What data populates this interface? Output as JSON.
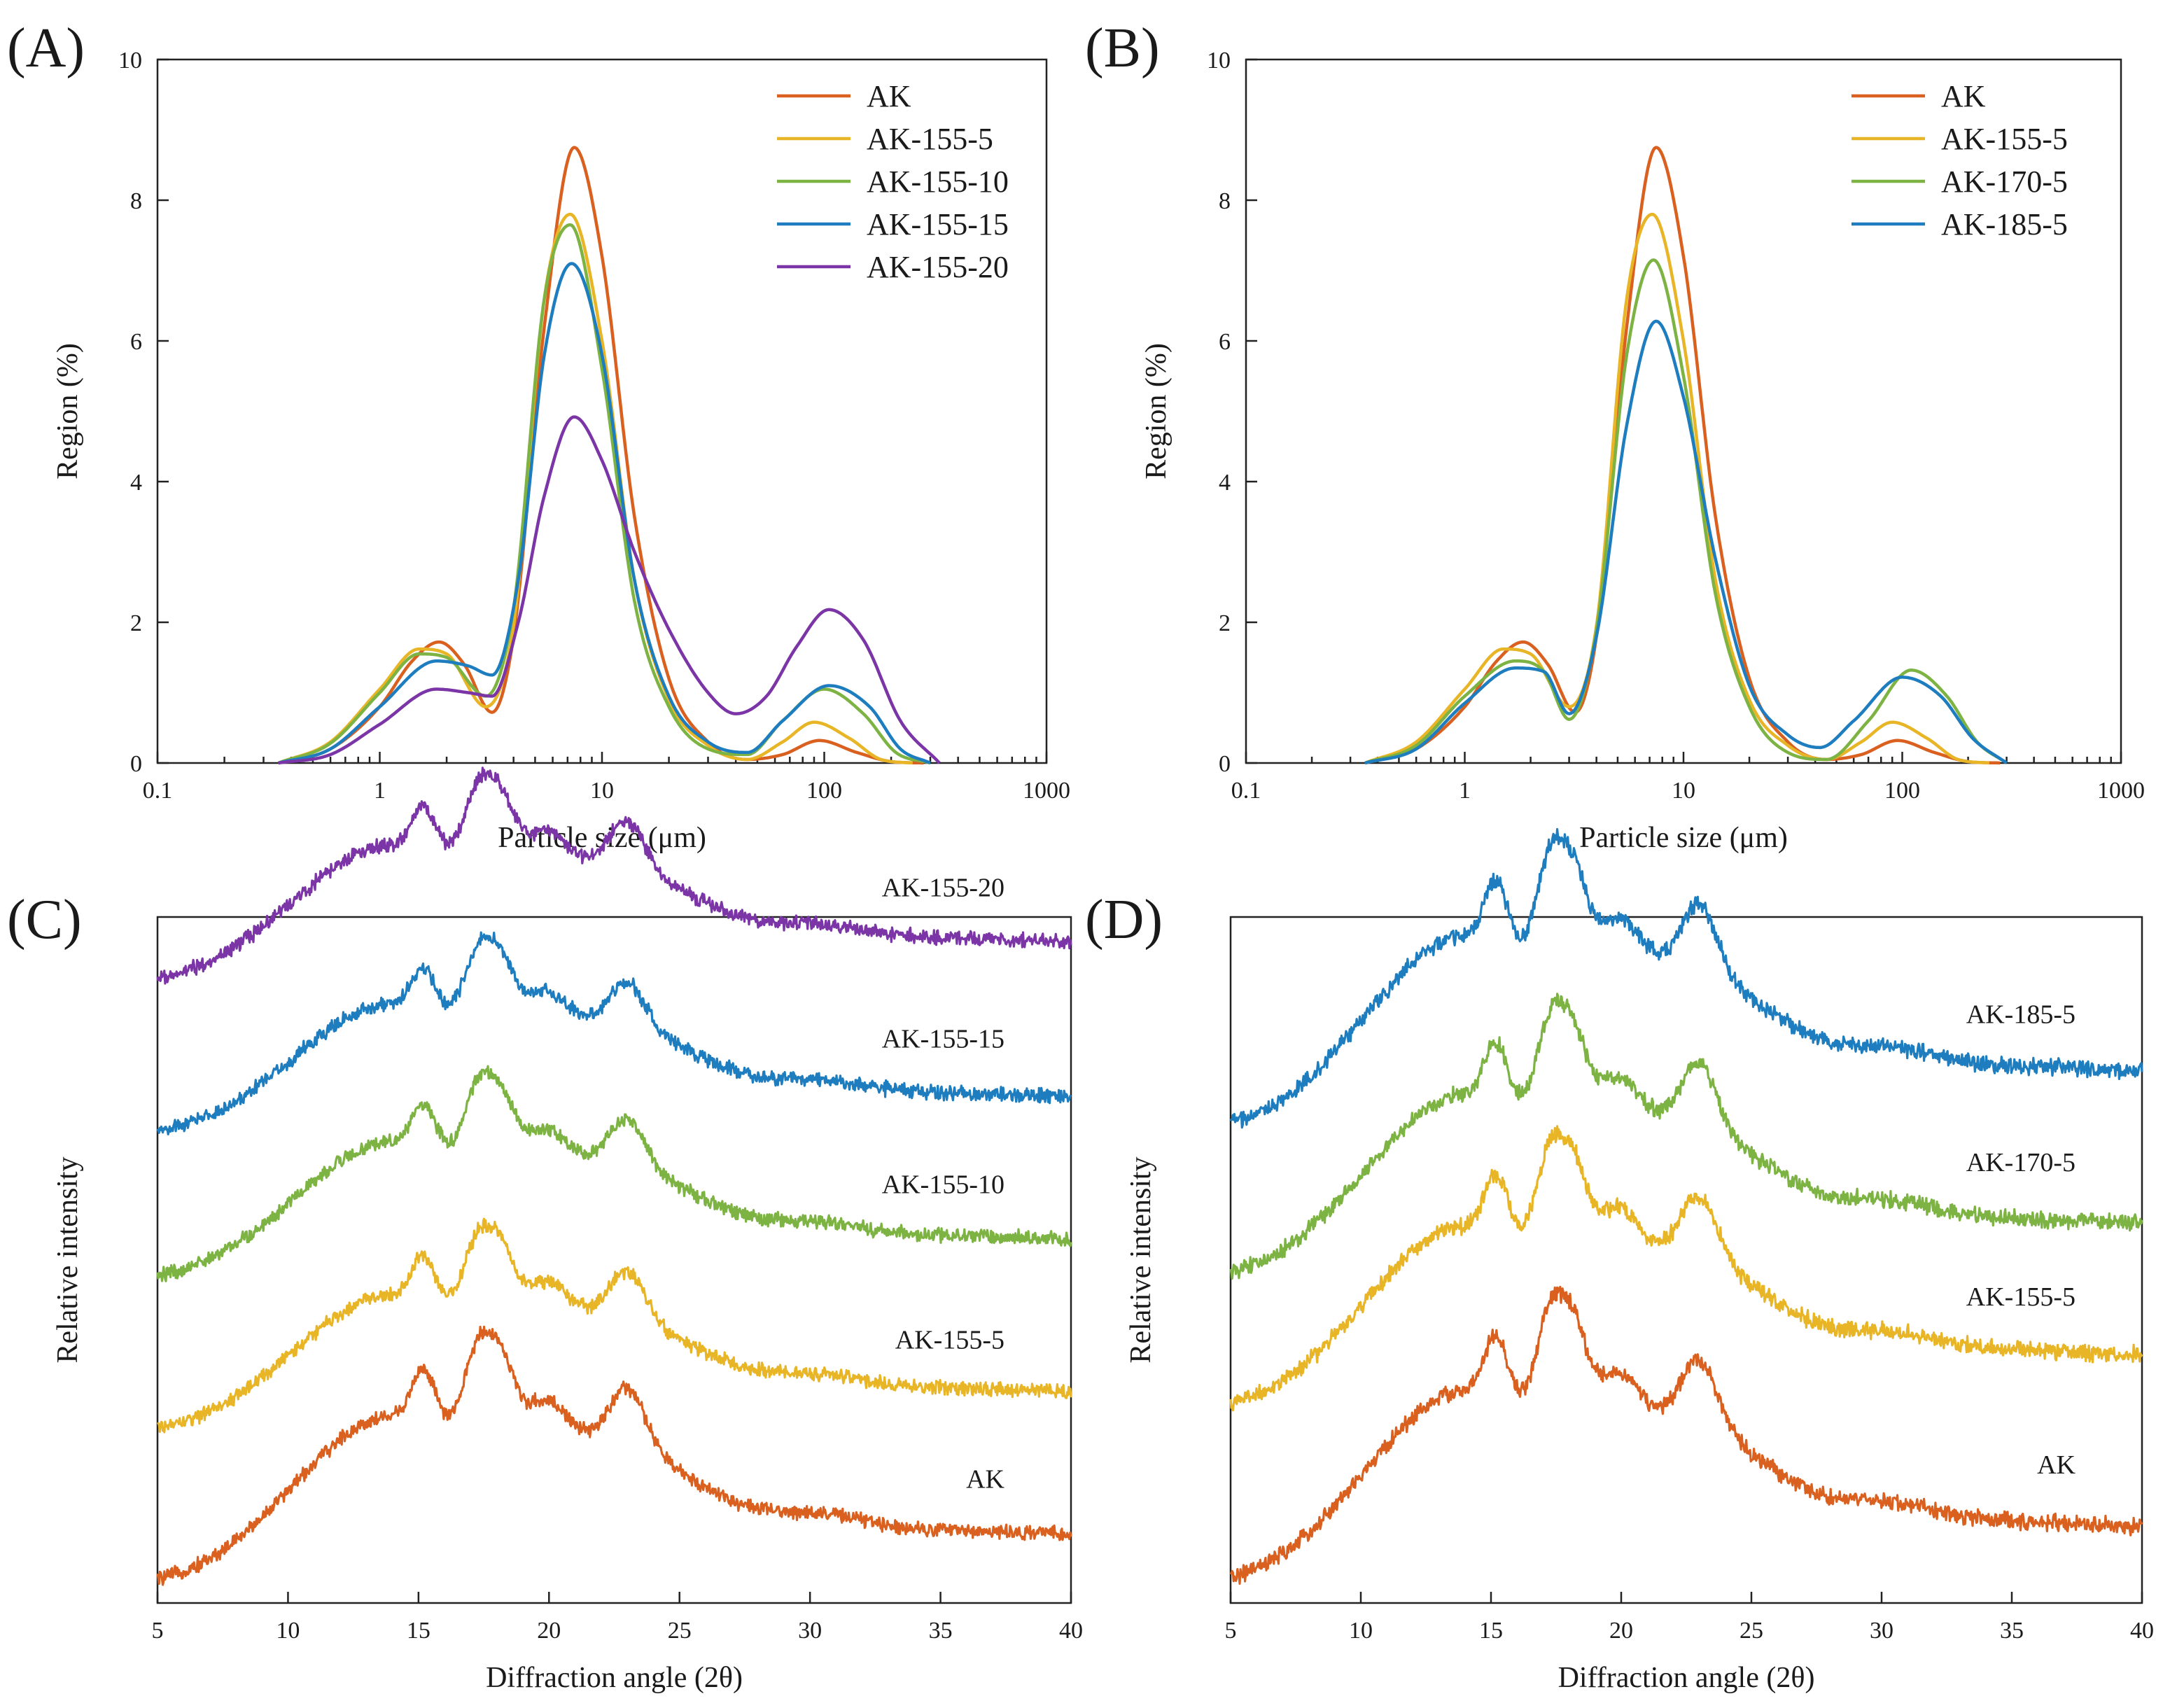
{
  "figure": {
    "colors": {
      "AK": "#D9601F",
      "AK-155-5": "#E8B527",
      "AK-155-10": "#7CB342",
      "AK-155-15": "#1E7DBF",
      "AK-155-20": "#7B35A6",
      "AK-170-5": "#7CB342",
      "AK-185-5": "#1E7DBF"
    }
  },
  "chart_data": [
    {
      "panel": "(A)",
      "type": "line",
      "xscale": "log",
      "xlabel": "Particle size (μm)",
      "ylabel": "Region (%)",
      "xlim": [
        0.1,
        1000
      ],
      "ylim": [
        0,
        10
      ],
      "xticks": [
        0.1,
        1,
        10,
        100,
        1000
      ],
      "xtick_labels": [
        "0.1",
        "1",
        "10",
        "100",
        "1000"
      ],
      "yticks": [
        0,
        2,
        4,
        6,
        8,
        10
      ],
      "ytick_labels": [
        "0",
        "2",
        "4",
        "6",
        "8",
        "10"
      ],
      "legend_position": "top-right",
      "series": [
        {
          "name": "AK",
          "x": [
            0.35,
            0.6,
            1.0,
            1.4,
            1.85,
            2.4,
            3.2,
            4.0,
            5.5,
            7.5,
            10,
            14,
            20,
            30,
            45,
            65,
            95,
            140,
            200,
            280
          ],
          "y": [
            0,
            0.2,
            0.8,
            1.45,
            1.72,
            1.4,
            0.72,
            1.8,
            6.2,
            8.75,
            7.2,
            3.5,
            1.2,
            0.3,
            0.05,
            0.12,
            0.32,
            0.15,
            0.02,
            0
          ]
        },
        {
          "name": "AK-155-5",
          "x": [
            0.35,
            0.6,
            1.0,
            1.5,
            2.0,
            3.0,
            4.0,
            5.5,
            7.2,
            10,
            14,
            20,
            30,
            45,
            65,
            90,
            130,
            180,
            250
          ],
          "y": [
            0,
            0.3,
            1.05,
            1.62,
            1.55,
            0.8,
            1.95,
            6.6,
            7.8,
            6.0,
            2.6,
            0.9,
            0.25,
            0.05,
            0.3,
            0.58,
            0.35,
            0.05,
            0
          ]
        },
        {
          "name": "AK-155-10",
          "x": [
            0.35,
            0.6,
            1.0,
            1.5,
            2.0,
            3.0,
            4.0,
            5.5,
            7.2,
            10,
            14,
            20,
            30,
            45,
            65,
            100,
            150,
            210,
            300
          ],
          "y": [
            0,
            0.28,
            1.0,
            1.55,
            1.5,
            0.95,
            2.2,
            6.6,
            7.65,
            5.6,
            2.3,
            0.8,
            0.2,
            0.12,
            0.6,
            1.05,
            0.7,
            0.15,
            0
          ]
        },
        {
          "name": "AK-155-15",
          "x": [
            0.35,
            0.6,
            1.0,
            1.8,
            2.5,
            3.2,
            4.2,
            5.5,
            7.3,
            10,
            14,
            20,
            30,
            45,
            65,
            105,
            160,
            220,
            300
          ],
          "y": [
            0,
            0.2,
            0.8,
            1.45,
            1.38,
            1.25,
            2.6,
            5.8,
            7.1,
            5.8,
            2.6,
            0.95,
            0.3,
            0.15,
            0.6,
            1.1,
            0.8,
            0.2,
            0
          ]
        },
        {
          "name": "AK-155-20",
          "x": [
            0.35,
            0.6,
            1.0,
            1.8,
            2.5,
            3.2,
            4.2,
            5.5,
            7.5,
            10,
            14,
            20,
            30,
            40,
            55,
            75,
            105,
            150,
            220,
            330
          ],
          "y": [
            0,
            0.12,
            0.55,
            1.05,
            1.0,
            0.95,
            2.0,
            3.8,
            4.92,
            4.3,
            3.0,
            1.9,
            1.0,
            0.7,
            0.95,
            1.65,
            2.18,
            1.75,
            0.6,
            0
          ]
        }
      ]
    },
    {
      "panel": "(B)",
      "type": "line",
      "xscale": "log",
      "xlabel": "Particle size (μm)",
      "ylabel": "Region (%)",
      "xlim": [
        0.1,
        1000
      ],
      "ylim": [
        0,
        10
      ],
      "xticks": [
        0.1,
        1,
        10,
        100,
        1000
      ],
      "xtick_labels": [
        "0.1",
        "1",
        "10",
        "100",
        "1000"
      ],
      "yticks": [
        0,
        2,
        4,
        6,
        8,
        10
      ],
      "ytick_labels": [
        "0",
        "2",
        "4",
        "6",
        "8",
        "10"
      ],
      "legend_position": "top-right",
      "series": [
        {
          "name": "AK",
          "x": [
            0.35,
            0.6,
            1.0,
            1.4,
            1.85,
            2.4,
            3.2,
            4.0,
            5.5,
            7.5,
            10,
            14,
            20,
            30,
            45,
            65,
            95,
            140,
            200,
            280
          ],
          "y": [
            0,
            0.2,
            0.8,
            1.45,
            1.72,
            1.4,
            0.72,
            1.8,
            6.2,
            8.75,
            7.2,
            3.5,
            1.2,
            0.3,
            0.05,
            0.12,
            0.32,
            0.15,
            0.02,
            0
          ]
        },
        {
          "name": "AK-155-5",
          "x": [
            0.35,
            0.6,
            1.0,
            1.5,
            2.0,
            3.0,
            4.0,
            5.5,
            7.2,
            10,
            14,
            20,
            30,
            45,
            65,
            90,
            130,
            180,
            250
          ],
          "y": [
            0,
            0.3,
            1.05,
            1.62,
            1.55,
            0.8,
            1.95,
            6.6,
            7.8,
            6.0,
            2.6,
            0.9,
            0.25,
            0.05,
            0.3,
            0.58,
            0.35,
            0.05,
            0
          ]
        },
        {
          "name": "AK-170-5",
          "x": [
            0.35,
            0.6,
            1.0,
            1.7,
            2.3,
            3.0,
            4.0,
            5.5,
            7.3,
            10,
            14,
            20,
            30,
            45,
            70,
            110,
            160,
            220,
            300
          ],
          "y": [
            0,
            0.25,
            0.95,
            1.45,
            1.3,
            0.62,
            1.9,
            5.8,
            7.15,
            5.5,
            2.4,
            0.8,
            0.15,
            0.05,
            0.6,
            1.32,
            0.95,
            0.3,
            0
          ]
        },
        {
          "name": "AK-185-5",
          "x": [
            0.35,
            0.6,
            1.0,
            1.7,
            2.3,
            3.0,
            4.0,
            5.5,
            7.5,
            10,
            14,
            20,
            30,
            42,
            60,
            100,
            150,
            210,
            300
          ],
          "y": [
            0,
            0.2,
            0.85,
            1.35,
            1.3,
            0.7,
            1.8,
            4.8,
            6.28,
            5.2,
            2.9,
            1.1,
            0.4,
            0.22,
            0.6,
            1.22,
            0.95,
            0.35,
            0
          ]
        }
      ]
    },
    {
      "panel": "(C)",
      "type": "line",
      "xlabel": "Diffraction angle (2θ)",
      "ylabel": "Relative intensity",
      "xlim": [
        5,
        40
      ],
      "xticks": [
        5,
        10,
        15,
        20,
        25,
        30,
        35,
        40
      ],
      "xtick_labels": [
        "5",
        "10",
        "15",
        "20",
        "25",
        "30",
        "35",
        "40"
      ],
      "y_units": "arbitrary (stacked traces, offset for clarity)",
      "peaks_2theta": [
        15.2,
        17.2,
        18.0,
        19.9,
        23.0
      ],
      "series": [
        {
          "name": "AK",
          "label": "AK",
          "offset": 0,
          "scale": 1.0
        },
        {
          "name": "AK-155-5",
          "label": "AK-155-5",
          "offset": 1.0,
          "scale": 0.82
        },
        {
          "name": "AK-155-10",
          "label": "AK-155-10",
          "offset": 2.0,
          "scale": 0.82
        },
        {
          "name": "AK-155-15",
          "label": "AK-155-15",
          "offset": 2.95,
          "scale": 0.78
        },
        {
          "name": "AK-155-20",
          "label": "AK-155-20",
          "offset": 3.95,
          "scale": 0.82
        }
      ]
    },
    {
      "panel": "(D)",
      "type": "line",
      "xlabel": "Diffraction angle (2θ)",
      "ylabel": "Relative intensity",
      "xlim": [
        5,
        40
      ],
      "xticks": [
        5,
        10,
        15,
        20,
        25,
        30,
        35,
        40
      ],
      "xtick_labels": [
        "5",
        "10",
        "15",
        "20",
        "25",
        "30",
        "35",
        "40"
      ],
      "y_units": "arbitrary (stacked traces, offset for clarity)",
      "peaks_2theta": [
        15.2,
        17.2,
        18.0,
        19.9,
        23.0
      ],
      "series": [
        {
          "name": "AK",
          "label": "AK",
          "offset": 0,
          "scale": 1.0
        },
        {
          "name": "AK-155-5",
          "label": "AK-155-5",
          "offset": 1.0,
          "scale": 0.95
        },
        {
          "name": "AK-170-5",
          "label": "AK-170-5",
          "offset": 1.75,
          "scale": 0.95
        },
        {
          "name": "AK-185-5",
          "label": "AK-185-5",
          "offset": 2.6,
          "scale": 1.0
        }
      ]
    }
  ]
}
